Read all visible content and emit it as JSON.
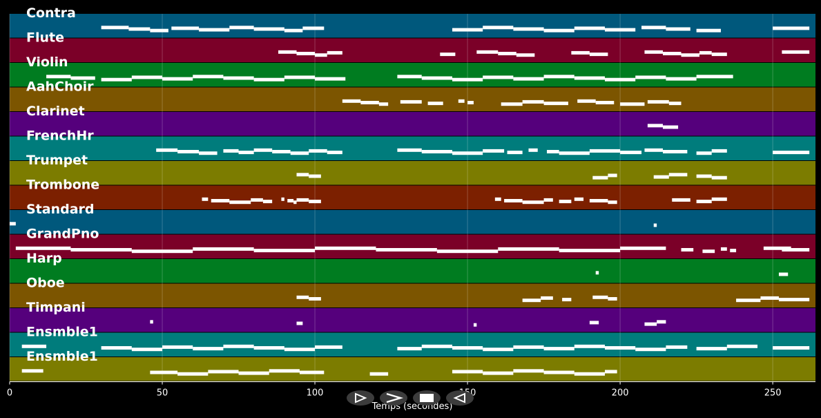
{
  "chart_data": {
    "type": "piano-roll",
    "xlabel": "Temps (secondes)",
    "xlim": [
      0,
      264
    ],
    "xticks": [
      0,
      50,
      100,
      150,
      200,
      250
    ],
    "grid": true,
    "tracks": [
      {
        "name": "Contra",
        "color": "#00587c",
        "segments": [
          [
            30,
            39
          ],
          [
            39,
            46
          ],
          [
            46,
            52
          ],
          [
            53,
            62
          ],
          [
            62,
            72
          ],
          [
            72,
            80
          ],
          [
            80,
            90
          ],
          [
            90,
            96
          ],
          [
            96,
            103
          ],
          [
            145,
            155
          ],
          [
            155,
            165
          ],
          [
            165,
            175
          ],
          [
            175,
            185
          ],
          [
            185,
            195
          ],
          [
            195,
            205
          ],
          [
            207,
            215
          ],
          [
            215,
            223
          ],
          [
            225,
            233
          ],
          [
            250,
            262
          ]
        ]
      },
      {
        "name": "Flute",
        "color": "#7b0028",
        "segments": [
          [
            88,
            94
          ],
          [
            94,
            100
          ],
          [
            100,
            104
          ],
          [
            104,
            109
          ],
          [
            141,
            146
          ],
          [
            153,
            160
          ],
          [
            160,
            166
          ],
          [
            166,
            172
          ],
          [
            184,
            190
          ],
          [
            190,
            196
          ],
          [
            208,
            214
          ],
          [
            214,
            220
          ],
          [
            220,
            226
          ],
          [
            226,
            230
          ],
          [
            230,
            235
          ],
          [
            253,
            262
          ]
        ]
      },
      {
        "name": "Violin",
        "color": "#007c20",
        "segments": [
          [
            12,
            20
          ],
          [
            20,
            28
          ],
          [
            30,
            40
          ],
          [
            40,
            50
          ],
          [
            50,
            60
          ],
          [
            60,
            70
          ],
          [
            70,
            80
          ],
          [
            80,
            90
          ],
          [
            90,
            100
          ],
          [
            100,
            110
          ],
          [
            127,
            135
          ],
          [
            135,
            145
          ],
          [
            145,
            155
          ],
          [
            155,
            165
          ],
          [
            165,
            175
          ],
          [
            175,
            185
          ],
          [
            185,
            195
          ],
          [
            195,
            205
          ],
          [
            205,
            215
          ],
          [
            215,
            225
          ],
          [
            225,
            237
          ]
        ]
      },
      {
        "name": "AahChoir",
        "color": "#7c5500",
        "segments": [
          [
            109,
            115
          ],
          [
            115,
            121
          ],
          [
            121,
            124
          ],
          [
            128,
            135
          ],
          [
            137,
            142
          ],
          [
            147,
            149
          ],
          [
            150,
            152
          ],
          [
            161,
            168
          ],
          [
            168,
            175
          ],
          [
            175,
            183
          ],
          [
            186,
            192
          ],
          [
            192,
            198
          ],
          [
            200,
            208
          ],
          [
            209,
            216
          ],
          [
            216,
            220
          ]
        ]
      },
      {
        "name": "Clarinet",
        "color": "#55007c",
        "segments": [
          [
            209,
            214
          ],
          [
            214,
            219
          ]
        ]
      },
      {
        "name": "FrenchHr",
        "color": "#007c7c",
        "segments": [
          [
            48,
            55
          ],
          [
            55,
            62
          ],
          [
            62,
            68
          ],
          [
            70,
            75
          ],
          [
            75,
            80
          ],
          [
            80,
            86
          ],
          [
            86,
            92
          ],
          [
            92,
            98
          ],
          [
            98,
            104
          ],
          [
            104,
            109
          ],
          [
            127,
            135
          ],
          [
            135,
            145
          ],
          [
            145,
            155
          ],
          [
            155,
            162
          ],
          [
            163,
            168
          ],
          [
            170,
            173
          ],
          [
            176,
            180
          ],
          [
            180,
            190
          ],
          [
            190,
            200
          ],
          [
            200,
            207
          ],
          [
            208,
            214
          ],
          [
            214,
            222
          ],
          [
            225,
            230
          ],
          [
            230,
            235
          ],
          [
            250,
            262
          ]
        ]
      },
      {
        "name": "Trumpet",
        "color": "#7c7c00",
        "segments": [
          [
            94,
            98
          ],
          [
            98,
            102
          ],
          [
            191,
            196
          ],
          [
            196,
            199
          ],
          [
            211,
            216
          ],
          [
            216,
            222
          ],
          [
            225,
            230
          ],
          [
            230,
            235
          ]
        ]
      },
      {
        "name": "Trombone",
        "color": "#7c2000",
        "segments": [
          [
            63,
            65
          ],
          [
            66,
            72
          ],
          [
            72,
            79
          ],
          [
            79,
            83
          ],
          [
            83,
            86
          ],
          [
            89,
            90
          ],
          [
            91,
            93
          ],
          [
            93,
            94
          ],
          [
            94,
            98
          ],
          [
            98,
            102
          ],
          [
            159,
            161
          ],
          [
            162,
            168
          ],
          [
            168,
            175
          ],
          [
            175,
            178
          ],
          [
            180,
            184
          ],
          [
            185,
            188
          ],
          [
            190,
            196
          ],
          [
            196,
            199
          ],
          [
            217,
            223
          ],
          [
            225,
            230
          ],
          [
            230,
            235
          ]
        ]
      },
      {
        "name": "Standard",
        "color": "#00587c",
        "segments": [
          [
            0,
            2
          ],
          [
            211,
            212
          ]
        ]
      },
      {
        "name": "GrandPno",
        "color": "#7b0028",
        "segments": [
          [
            2,
            20
          ],
          [
            20,
            40
          ],
          [
            40,
            60
          ],
          [
            60,
            80
          ],
          [
            80,
            100
          ],
          [
            100,
            120
          ],
          [
            120,
            140
          ],
          [
            140,
            160
          ],
          [
            160,
            180
          ],
          [
            180,
            200
          ],
          [
            200,
            215
          ],
          [
            220,
            224
          ],
          [
            227,
            231
          ],
          [
            233,
            235
          ],
          [
            236,
            238
          ],
          [
            247,
            256
          ],
          [
            253,
            262
          ]
        ]
      },
      {
        "name": "Harp",
        "color": "#007c20",
        "segments": [
          [
            192,
            193
          ],
          [
            252,
            255
          ]
        ]
      },
      {
        "name": "Oboe",
        "color": "#7c5500",
        "segments": [
          [
            94,
            98
          ],
          [
            98,
            102
          ],
          [
            168,
            174
          ],
          [
            174,
            178
          ],
          [
            181,
            184
          ],
          [
            191,
            196
          ],
          [
            196,
            199
          ],
          [
            238,
            246
          ],
          [
            246,
            252
          ],
          [
            252,
            262
          ]
        ]
      },
      {
        "name": "Timpani",
        "color": "#55007c",
        "segments": [
          [
            46,
            47
          ],
          [
            94,
            96
          ],
          [
            152,
            153
          ],
          [
            190,
            193
          ],
          [
            208,
            212
          ],
          [
            212,
            215
          ]
        ]
      },
      {
        "name": "Ensmble1",
        "color": "#007c7c",
        "segments": [
          [
            4,
            12
          ],
          [
            30,
            40
          ],
          [
            40,
            50
          ],
          [
            50,
            60
          ],
          [
            60,
            70
          ],
          [
            70,
            80
          ],
          [
            80,
            90
          ],
          [
            90,
            100
          ],
          [
            100,
            109
          ],
          [
            127,
            135
          ],
          [
            135,
            145
          ],
          [
            145,
            155
          ],
          [
            155,
            165
          ],
          [
            165,
            175
          ],
          [
            175,
            185
          ],
          [
            185,
            195
          ],
          [
            195,
            205
          ],
          [
            205,
            215
          ],
          [
            215,
            222
          ],
          [
            225,
            235
          ],
          [
            235,
            245
          ],
          [
            250,
            262
          ]
        ]
      },
      {
        "name": "Ensmble1",
        "color": "#7c7c00",
        "segments": [
          [
            4,
            11
          ],
          [
            46,
            55
          ],
          [
            55,
            65
          ],
          [
            65,
            75
          ],
          [
            75,
            85
          ],
          [
            85,
            95
          ],
          [
            95,
            103
          ],
          [
            118,
            124
          ],
          [
            145,
            155
          ],
          [
            155,
            165
          ],
          [
            165,
            175
          ],
          [
            175,
            185
          ],
          [
            185,
            195
          ],
          [
            195,
            199
          ]
        ]
      }
    ]
  },
  "controls": [
    {
      "name": "play-outline-button",
      "icon": "play-outline-icon"
    },
    {
      "name": "forward-button",
      "icon": "chevron-right-icon"
    },
    {
      "name": "stop-button",
      "icon": "stop-icon"
    },
    {
      "name": "rewind-button",
      "icon": "play-reverse-outline-icon"
    }
  ]
}
